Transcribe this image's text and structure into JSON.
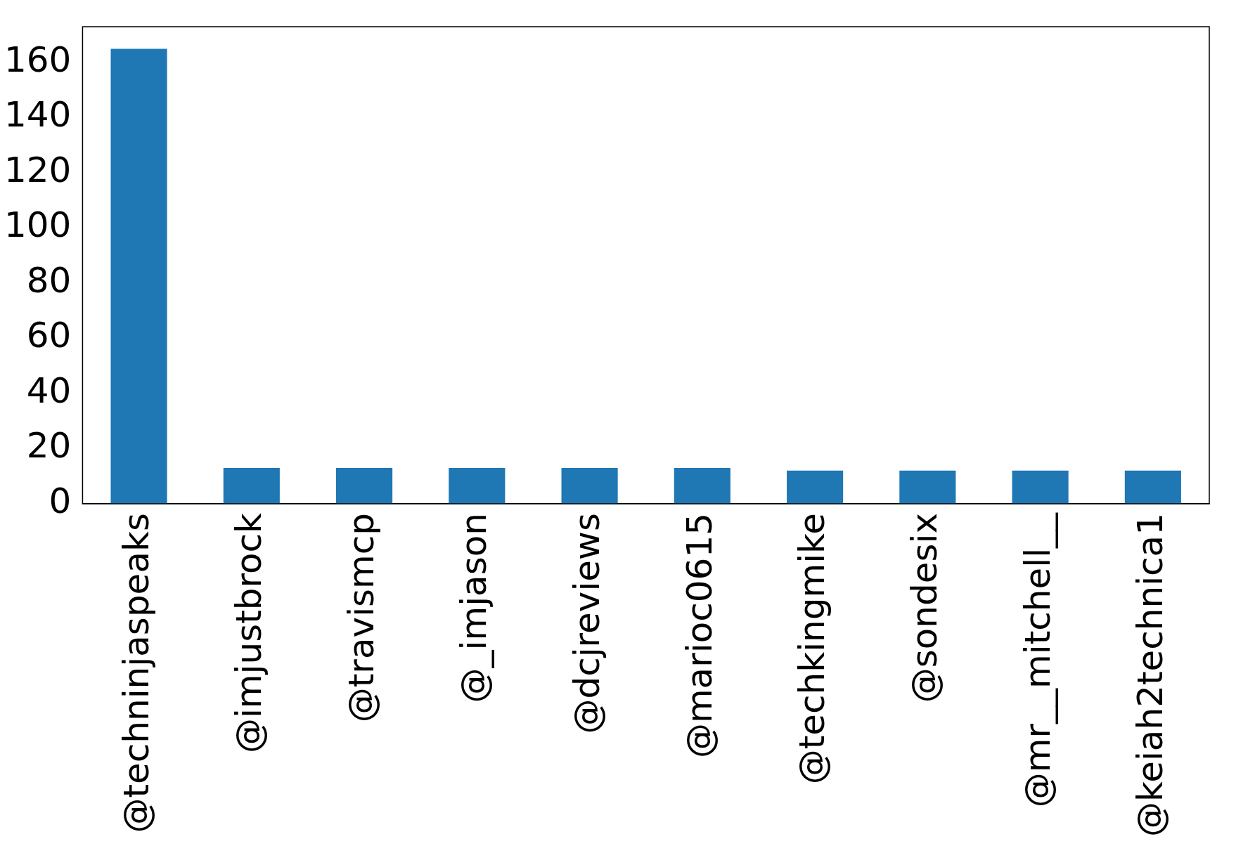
{
  "chart_data": {
    "type": "bar",
    "categories": [
      "@techninjaspeaks",
      "@imjustbrock",
      "@travismcp",
      "@_imjason",
      "@dcjreviews",
      "@marioc0615",
      "@techkingmike",
      "@sondesix",
      "@mr__mitchell__",
      "@keiah2technica1"
    ],
    "values": [
      165,
      13,
      13,
      13,
      13,
      13,
      12,
      12,
      12,
      12
    ],
    "color": "#1f77b4",
    "ylim": [
      0,
      173
    ],
    "yticks": [
      0,
      20,
      40,
      60,
      80,
      100,
      120,
      140,
      160
    ],
    "grid": false,
    "legend": false
  }
}
